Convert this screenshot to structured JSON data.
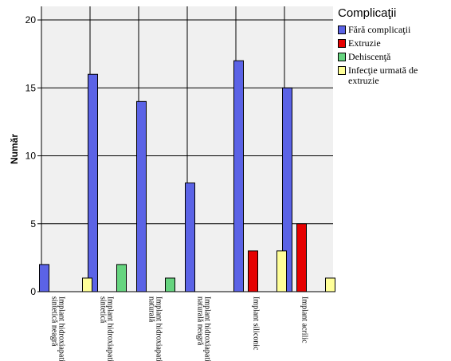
{
  "chart_data": {
    "type": "bar",
    "ylabel": "Număr",
    "ylim": [
      0,
      21
    ],
    "yticks": [
      0,
      5,
      10,
      15,
      20
    ],
    "grid": true,
    "legend_placement": "right",
    "categories": [
      "Implant hidroxiapatită sintetică neagră",
      "Implant hidroxiapatită sintetică",
      "Implant hidroxiapatită naturală",
      "Implant hidroxiapatită naturală neagră",
      "Implant siliconic",
      "Implant acrilic"
    ],
    "series": [
      {
        "name": "Fără complicaţii",
        "color": "#5b63e6",
        "values": [
          2,
          16,
          14,
          8,
          17,
          15
        ]
      },
      {
        "name": "Extruzie",
        "color": "#e60000",
        "values": [
          0,
          0,
          0,
          0,
          3,
          5
        ]
      },
      {
        "name": "Dehiscenţă",
        "color": "#66d47f",
        "values": [
          0,
          2,
          1,
          0,
          0,
          0
        ]
      },
      {
        "name": "Infecţie urmată de extruzie",
        "color": "#ffff99",
        "values": [
          1,
          0,
          0,
          0,
          3,
          1
        ]
      }
    ]
  },
  "legend": {
    "title": "Complicaţii"
  }
}
